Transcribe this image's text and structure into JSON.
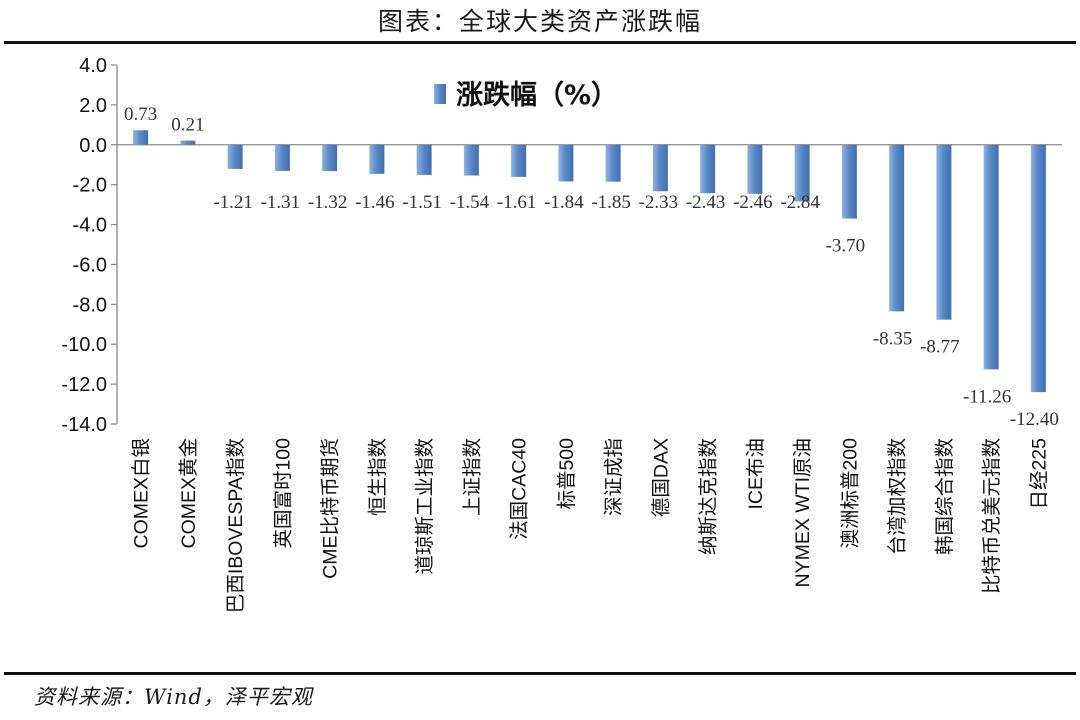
{
  "figure": {
    "title": "图表：全球大类资产涨跌幅",
    "source": "资料来源：Wind，泽平宏观"
  },
  "colors": {
    "bar": "#5b8ac6",
    "bar_edge": "#3f6fb0",
    "axis": "#888888"
  },
  "chart_data": {
    "type": "bar",
    "title": "",
    "xlabel": "",
    "ylabel": "",
    "ylim": [
      -14,
      4
    ],
    "yticks": [
      4,
      2,
      0,
      -2,
      -4,
      -6,
      -8,
      -10,
      -12,
      -14
    ],
    "ytick_labels": [
      "4.0",
      "2.0",
      "0.0",
      "-2.0",
      "-4.0",
      "-6.0",
      "-8.0",
      "-10.0",
      "-12.0",
      "-14.0"
    ],
    "grid": false,
    "legend_position": "top-center",
    "categories": [
      "COMEX白银",
      "COMEX黄金",
      "巴西IBOVESPA指数",
      "英国富时100",
      "CME比特币期货",
      "恒生指数",
      "道琼斯工业指数",
      "上证指数",
      "法国CAC40",
      "标普500",
      "深证成指",
      "德国DAX",
      "纳斯达克指数",
      "ICE布油",
      "NYMEX WTI原油",
      "澳洲标普200",
      "台湾加权指数",
      "韩国综合指数",
      "比特币兑美元指数",
      "日经225"
    ],
    "series": [
      {
        "name": "涨跌幅（%）",
        "values": [
          0.73,
          0.21,
          -1.21,
          -1.31,
          -1.32,
          -1.46,
          -1.51,
          -1.54,
          -1.61,
          -1.84,
          -1.85,
          -2.33,
          -2.43,
          -2.46,
          -2.84,
          -3.7,
          -8.35,
          -8.77,
          -11.26,
          -12.4
        ],
        "labels": [
          "0.73",
          "0.21",
          "-1.21",
          "-1.31",
          "-1.32",
          "-1.46",
          "-1.51",
          "-1.54",
          "-1.61",
          "-1.84",
          "-1.85",
          "-2.33",
          "-2.43",
          "-2.46",
          "-2.84",
          "-3.70",
          "-8.35",
          "-8.77",
          "-11.26",
          "-12.40"
        ]
      }
    ]
  }
}
